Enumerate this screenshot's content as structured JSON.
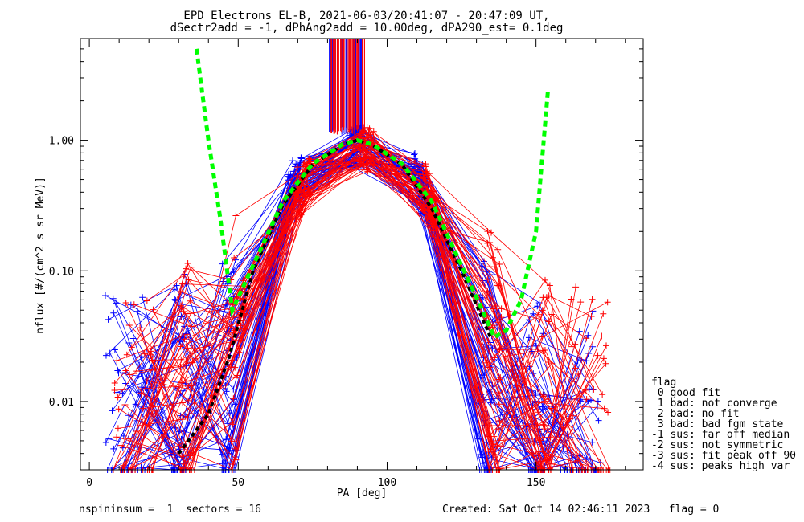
{
  "chart_data": {
    "type": "line",
    "title": "EPD Electrons EL-B, 2021-06-03/20:41:07 - 20:47:09 UT,",
    "subtitle": "dSectr2add = -1, dPhAng2add = 10.00deg, dPA290_est=   0.1deg",
    "xlabel": "PA [deg]",
    "ylabel": "nflux [#/(cm^2 s sr MeV)]",
    "xlim": [
      -3,
      186
    ],
    "ylim": [
      0.003,
      6
    ],
    "yscale": "log",
    "xticks": [
      "0",
      "50",
      "100",
      "150"
    ],
    "yticks": [
      "0.01",
      "0.10",
      "1.00"
    ],
    "series": [
      {
        "color": "#0000ff",
        "kind": "blue-sector-traces",
        "x": [
          10,
          25,
          35,
          47,
          55,
          70,
          80,
          90,
          100,
          110,
          122,
          132,
          145,
          155
        ],
        "y": [
          0.006,
          0.006,
          0.008,
          0.01,
          0.12,
          0.5,
          0.75,
          0.95,
          0.8,
          0.5,
          0.15,
          0.01,
          0.006,
          0.004
        ]
      },
      {
        "color": "#ff0000",
        "kind": "red-sector-traces",
        "x": [
          20,
          35,
          47,
          55,
          70,
          80,
          90,
          100,
          110,
          122,
          135,
          150,
          165
        ],
        "y": [
          0.005,
          0.01,
          0.02,
          0.1,
          0.4,
          0.7,
          0.9,
          0.8,
          0.55,
          0.15,
          0.015,
          0.008,
          0.006
        ]
      },
      {
        "color": "#000000",
        "kind": "fit-dashed-black",
        "x": [
          30,
          40,
          47,
          55,
          65,
          75,
          85,
          90,
          95,
          105,
          115,
          125,
          135
        ],
        "y": [
          0.004,
          0.008,
          0.022,
          0.1,
          0.32,
          0.65,
          0.92,
          1.0,
          0.92,
          0.65,
          0.3,
          0.1,
          0.03
        ]
      },
      {
        "color": "#00ff00",
        "kind": "fit-dashed-green",
        "x": [
          36,
          40,
          44,
          48,
          55,
          65,
          75,
          85,
          90,
          95,
          105,
          115,
          125,
          132,
          136,
          140,
          145,
          150,
          154
        ],
        "y": [
          5.0,
          1.0,
          0.25,
          0.05,
          0.11,
          0.34,
          0.66,
          0.93,
          1.0,
          0.93,
          0.66,
          0.34,
          0.11,
          0.05,
          0.031,
          0.035,
          0.06,
          0.2,
          2.4
        ]
      }
    ],
    "legend": {
      "placement": "right",
      "title": "flag",
      "entries": [
        " 0 good fit",
        " 1 bad: not converge",
        " 2 bad: no fit",
        " 3 bad: bad fgm state",
        "-1 sus: far off median",
        "-2 sus: not symmetric",
        "-3 sus: fit peak off 90",
        "-4 sus: peaks high var"
      ]
    },
    "footer_left": "nspininsum =  1  sectors = 16",
    "footer_right": "Created: Sat Oct 14 02:46:11 2023   flag = 0"
  }
}
